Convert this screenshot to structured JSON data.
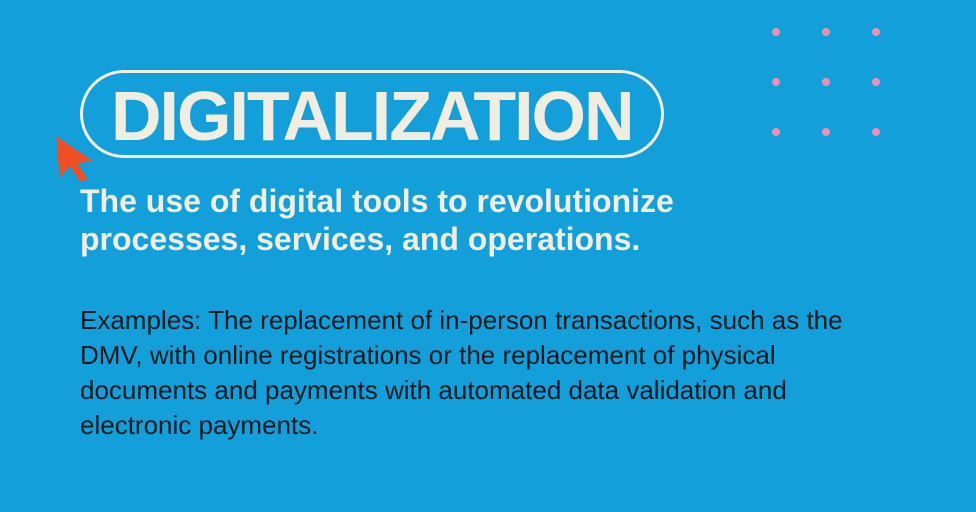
{
  "slide": {
    "background_color": "#139fd9",
    "title": {
      "text": "DIGITALIZATION",
      "color": "#f2ede1",
      "fontsize": 70,
      "pill_border_color": "#f2ede1",
      "pill_border_width": 3
    },
    "cursor": {
      "color": "#f04e23"
    },
    "definition": {
      "text": "The use of digital tools to revolutionize processes, services, and operations.",
      "color": "#f2ede1",
      "fontsize": 32
    },
    "examples": {
      "text": "Examples: The replacement of in-person transactions, such as the DMV, with online registrations or the replacement of physical documents and payments with automated data validation and electronic payments.",
      "color": "#0b1a1f",
      "fontsize": 26
    },
    "dot_grid": {
      "rows": 3,
      "cols": 3,
      "dot_color": "#f18fb2",
      "dot_size": 8,
      "gap": 42
    }
  }
}
